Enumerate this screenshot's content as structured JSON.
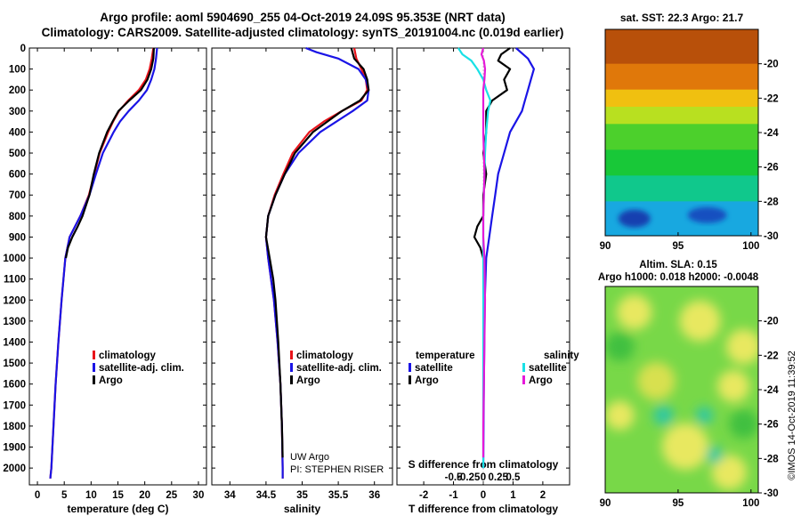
{
  "header": {
    "line1": "Argo profile: aoml 5904690_255 04-Oct-2019 24.09S 95.353E (NRT data)",
    "line2": "Climatology: CARS2009. Satellite-adjusted climatology: synTS_20191004.nc (0.019d earlier)"
  },
  "colors": {
    "red": "#e8131a",
    "blue": "#1a14e6",
    "black": "#000000",
    "cyan": "#19e1e6",
    "magenta": "#e619d9"
  },
  "depth_axis": {
    "ylim": [
      0,
      2080
    ],
    "ticks": [
      0,
      100,
      200,
      300,
      400,
      500,
      600,
      700,
      800,
      900,
      1000,
      1100,
      1200,
      1300,
      1400,
      1500,
      1600,
      1700,
      1800,
      1900,
      2000
    ],
    "tick_labels": [
      "0",
      "100",
      "200",
      "300",
      "400",
      "500",
      "600",
      "700",
      "800",
      "900",
      "1000",
      "1100",
      "1200",
      "1300",
      "1400",
      "1500",
      "1600",
      "1700",
      "1800",
      "1900",
      "2000"
    ]
  },
  "chart_data": [
    {
      "type": "line",
      "id": "temperature",
      "xlabel": "temperature (deg C)",
      "xlim": [
        -1.5,
        31.5
      ],
      "xticks": [
        0,
        5,
        10,
        15,
        20,
        25,
        30
      ],
      "xtick_labels": [
        "0",
        "5",
        "10",
        "15",
        "20",
        "25",
        "30"
      ],
      "legend": [
        "climatology",
        "satellite-adj. clim.",
        "Argo"
      ],
      "series": [
        {
          "name": "climatology",
          "color": "red",
          "depth": [
            0,
            50,
            100,
            150,
            200,
            250,
            300,
            350,
            400,
            500,
            600,
            700,
            800,
            900,
            1000,
            1200,
            1400,
            1600,
            1800,
            2000,
            2050
          ],
          "values": [
            21.6,
            21.3,
            20.9,
            20.2,
            18.9,
            16.9,
            15.2,
            14.1,
            13.2,
            11.6,
            10.6,
            9.6,
            8.0,
            6.0,
            5.2,
            4.5,
            3.9,
            3.4,
            3.0,
            2.6,
            2.4
          ]
        },
        {
          "name": "satellite-adj. clim.",
          "color": "blue",
          "depth": [
            0,
            50,
            100,
            150,
            200,
            250,
            300,
            350,
            400,
            500,
            600,
            700,
            800,
            900,
            1000,
            1200,
            1400,
            1600,
            1800,
            2000,
            2050
          ],
          "values": [
            22.3,
            22.1,
            21.8,
            21.2,
            20.4,
            18.9,
            17.0,
            15.4,
            14.2,
            12.2,
            10.9,
            9.7,
            8.0,
            6.0,
            5.2,
            4.5,
            3.9,
            3.4,
            3.0,
            2.6,
            2.4
          ]
        },
        {
          "name": "Argo",
          "color": "black",
          "depth": [
            0,
            50,
            100,
            150,
            200,
            250,
            300,
            350,
            400,
            500,
            600,
            700,
            800,
            850,
            900,
            950,
            1000
          ],
          "values": [
            21.7,
            21.6,
            21.2,
            20.5,
            19.3,
            17.1,
            15.1,
            14.0,
            13.0,
            11.5,
            10.5,
            9.7,
            8.4,
            7.5,
            6.5,
            5.7,
            5.3
          ]
        }
      ]
    },
    {
      "type": "line",
      "id": "salinity",
      "xlabel": "salinity",
      "xlim": [
        33.75,
        36.25
      ],
      "xticks": [
        34,
        34.5,
        35,
        35.5,
        36
      ],
      "xtick_labels": [
        "34",
        "34.5",
        "35",
        "35.5",
        "36"
      ],
      "legend": [
        "climatology",
        "satellite-adj. clim.",
        "Argo"
      ],
      "notes": [
        "UW Argo",
        "PI: STEPHEN RISER"
      ],
      "series": [
        {
          "name": "climatology",
          "color": "red",
          "depth": [
            0,
            50,
            100,
            150,
            200,
            250,
            300,
            350,
            400,
            500,
            600,
            700,
            800,
            900,
            1000,
            1200,
            1400,
            1600,
            1800,
            2000,
            2050
          ],
          "values": [
            35.72,
            35.75,
            35.82,
            35.88,
            35.9,
            35.82,
            35.55,
            35.3,
            35.1,
            34.87,
            34.74,
            34.62,
            34.53,
            34.5,
            34.53,
            34.61,
            34.66,
            34.7,
            34.72,
            34.73,
            34.73
          ]
        },
        {
          "name": "satellite-adj. clim.",
          "color": "blue",
          "depth": [
            0,
            20,
            50,
            100,
            150,
            200,
            250,
            300,
            400,
            500,
            600,
            700,
            800,
            900,
            1000,
            1200,
            1400,
            1600,
            1800,
            2000,
            2050
          ],
          "values": [
            35.05,
            35.2,
            35.5,
            35.78,
            35.88,
            35.92,
            35.9,
            35.7,
            35.25,
            34.95,
            34.76,
            34.63,
            34.53,
            34.5,
            34.53,
            34.61,
            34.66,
            34.7,
            34.72,
            34.73,
            34.73
          ]
        },
        {
          "name": "Argo",
          "color": "black",
          "depth": [
            0,
            50,
            100,
            150,
            200,
            250,
            300,
            350,
            400,
            500,
            600,
            700,
            800,
            900,
            1000,
            1100,
            1200,
            1400,
            1600,
            1800,
            1950
          ],
          "values": [
            35.68,
            35.72,
            35.85,
            35.9,
            35.92,
            35.8,
            35.55,
            35.35,
            35.15,
            34.9,
            34.76,
            34.63,
            34.53,
            34.5,
            34.55,
            34.6,
            34.63,
            34.67,
            34.7,
            34.72,
            34.73
          ]
        }
      ]
    },
    {
      "type": "line",
      "id": "difference",
      "xlabel": "T difference from climatology",
      "xlim": [
        -2.9,
        2.9
      ],
      "xticks": [
        -2,
        -1,
        0,
        1,
        2
      ],
      "xtick_labels": [
        "-2",
        "-1",
        "0",
        "1",
        "2"
      ],
      "xlabel2": "S difference from climatology",
      "xticks2": [
        -0.5,
        -0.25,
        0,
        0.25,
        0.5
      ],
      "xtick_labels2": [
        "-0.5",
        "-0.25",
        "0",
        "0.25",
        "0.5"
      ],
      "legend_temperature_title": "temperature",
      "legend_salinity_title": "salinity",
      "legend": [
        "satellite",
        "Argo",
        "satellite",
        "Argo"
      ],
      "series": [
        {
          "name": "T satellite",
          "color": "blue",
          "depth": [
            0,
            50,
            100,
            150,
            200,
            250,
            300,
            400,
            500,
            600,
            700,
            800,
            900,
            1000,
            1200,
            1600,
            2000
          ],
          "values": [
            1.1,
            1.5,
            1.7,
            1.6,
            1.5,
            1.4,
            1.3,
            0.9,
            0.7,
            0.5,
            0.4,
            0.3,
            0.2,
            0.1,
            0.05,
            0.02,
            0.0
          ]
        },
        {
          "name": "T Argo",
          "color": "black",
          "depth": [
            0,
            30,
            60,
            100,
            150,
            200,
            250,
            300,
            400,
            500,
            600,
            700,
            800,
            850,
            900,
            950,
            1000
          ],
          "values": [
            0.9,
            0.6,
            0.5,
            0.9,
            0.7,
            0.8,
            0.3,
            0.1,
            0.1,
            0.0,
            0.1,
            0.0,
            0.0,
            -0.2,
            -0.3,
            -0.1,
            0.0
          ]
        },
        {
          "name": "S satellite",
          "color": "cyan",
          "depth": [
            0,
            30,
            60,
            100,
            150,
            200,
            250,
            300,
            400,
            500,
            600,
            700,
            800,
            900,
            1000,
            1200,
            1600,
            2000
          ],
          "values": [
            -0.42,
            -0.35,
            -0.2,
            -0.1,
            0.0,
            0.05,
            0.12,
            0.08,
            0.05,
            0.03,
            0.02,
            0.01,
            0.0,
            0.0,
            0.0,
            0.0,
            0.0,
            0.0
          ]
        },
        {
          "name": "S Argo",
          "color": "magenta",
          "depth": [
            0,
            30,
            60,
            100,
            150,
            200,
            250,
            300,
            400,
            500,
            600,
            700,
            800,
            900,
            1000,
            1200,
            1400,
            1600,
            1800,
            1950
          ],
          "values": [
            0.0,
            -0.03,
            0.01,
            0.03,
            0.02,
            0.0,
            0.0,
            0.0,
            0.0,
            0.01,
            0.02,
            0.01,
            0.0,
            0.0,
            0.02,
            0.03,
            0.02,
            0.01,
            0.0,
            0.0
          ]
        }
      ]
    },
    {
      "type": "heatmap",
      "id": "sst_map",
      "title": "sat. SST: 22.3 Argo: 21.7",
      "xlim": [
        90,
        100.5
      ],
      "ylim": [
        -30,
        -18
      ],
      "xticks": [
        90,
        95,
        100
      ],
      "xtick_labels": [
        "90",
        "95",
        "100"
      ],
      "yticks": [
        -20,
        -22,
        -24,
        -26,
        -28,
        -30
      ],
      "ytick_labels": [
        "-20",
        "-22",
        "-24",
        "-26",
        "-28",
        "-30"
      ],
      "color_bands": [
        {
          "lat_from": -18,
          "lat_to": -20,
          "color": "#b8500a"
        },
        {
          "lat_from": -20,
          "lat_to": -21.5,
          "color": "#e0780a"
        },
        {
          "lat_from": -21.5,
          "lat_to": -22.5,
          "color": "#f0c010"
        },
        {
          "lat_from": -22.5,
          "lat_to": -23.5,
          "color": "#b8e020"
        },
        {
          "lat_from": -23.5,
          "lat_to": -25,
          "color": "#4cd02c"
        },
        {
          "lat_from": -25,
          "lat_to": -26.5,
          "color": "#18c838"
        },
        {
          "lat_from": -26.5,
          "lat_to": -28,
          "color": "#10c88c"
        },
        {
          "lat_from": -28,
          "lat_to": -30,
          "color": "#18a8e0"
        }
      ]
    },
    {
      "type": "heatmap",
      "id": "sla_map",
      "title": "Altim. SLA: 0.15",
      "subtitle": "Argo h1000: 0.018 h2000: -0.0048",
      "xlim": [
        90,
        100.5
      ],
      "ylim": [
        -30,
        -18
      ],
      "xticks": [
        90,
        95,
        100
      ],
      "xtick_labels": [
        "90",
        "95",
        "100"
      ],
      "yticks": [
        -20,
        -22,
        -24,
        -26,
        -28,
        -30
      ],
      "ytick_labels": [
        "-20",
        "-22",
        "-24",
        "-26",
        "-28",
        "-30"
      ],
      "background_color": "#78d848",
      "blobs": [
        {
          "lon": 92.0,
          "lat": -19.5,
          "r": 1.2,
          "color": "#e8e860"
        },
        {
          "lon": 96.5,
          "lat": -20.0,
          "r": 1.4,
          "color": "#e8e860"
        },
        {
          "lon": 99.5,
          "lat": -21.5,
          "r": 1.2,
          "color": "#e8e860"
        },
        {
          "lon": 93.5,
          "lat": -23.5,
          "r": 1.3,
          "color": "#d8e050"
        },
        {
          "lon": 98.8,
          "lat": -23.8,
          "r": 1.1,
          "color": "#e8e860"
        },
        {
          "lon": 91.0,
          "lat": -25.5,
          "r": 1.0,
          "color": "#e8e860"
        },
        {
          "lon": 95.5,
          "lat": -27.3,
          "r": 1.6,
          "color": "#e8e860"
        },
        {
          "lon": 98.5,
          "lat": -28.8,
          "r": 1.2,
          "color": "#e8e860"
        },
        {
          "lon": 91.0,
          "lat": -21.5,
          "r": 1.0,
          "color": "#40c040"
        },
        {
          "lon": 94.0,
          "lat": -25.5,
          "r": 0.7,
          "color": "#30c8a0"
        },
        {
          "lon": 96.8,
          "lat": -25.5,
          "r": 0.6,
          "color": "#30c8a0"
        },
        {
          "lon": 97.5,
          "lat": -27.8,
          "r": 0.6,
          "color": "#30c8a0"
        },
        {
          "lon": 99.5,
          "lat": -26.0,
          "r": 1.0,
          "color": "#40c040"
        }
      ]
    }
  ],
  "footer": {
    "credit": "©IMOS 14-Oct-2019 11:39:52"
  }
}
